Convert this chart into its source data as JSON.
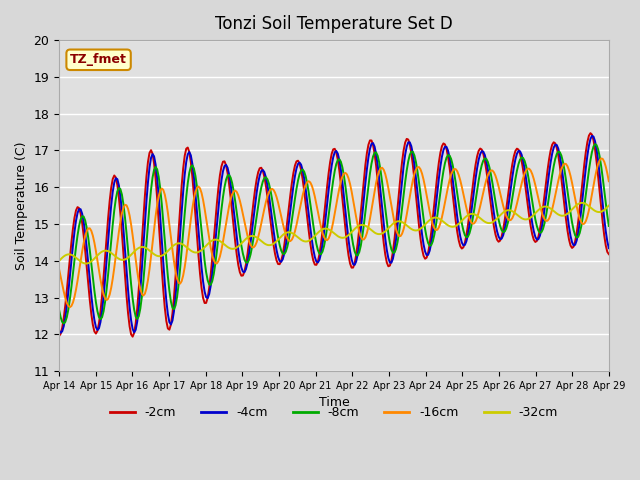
{
  "title": "Tonzi Soil Temperature Set D",
  "xlabel": "Time",
  "ylabel": "Soil Temperature (C)",
  "ylim": [
    11.0,
    20.0
  ],
  "yticks": [
    11.0,
    12.0,
    13.0,
    14.0,
    15.0,
    16.0,
    17.0,
    18.0,
    19.0,
    20.0
  ],
  "xtick_labels": [
    "Apr 14",
    "Apr 15",
    "Apr 16",
    "Apr 17",
    "Apr 18",
    "Apr 19",
    "Apr 20",
    "Apr 21",
    "Apr 22",
    "Apr 23",
    "Apr 24",
    "Apr 25",
    "Apr 26",
    "Apr 27",
    "Apr 28",
    "Apr 29"
  ],
  "legend_label": "TZ_fmet",
  "series_labels": [
    "-2cm",
    "-4cm",
    "-8cm",
    "-16cm",
    "-32cm"
  ],
  "series_colors": [
    "#cc0000",
    "#0000cc",
    "#00aa00",
    "#ff8800",
    "#cccc00"
  ],
  "bg_color": "#e0e0e0",
  "grid_color": "#ffffff",
  "n_days": 15,
  "n_pts": 360
}
